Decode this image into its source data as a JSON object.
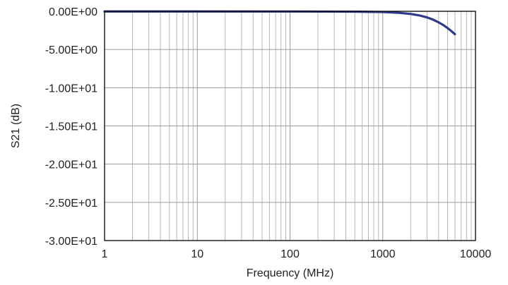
{
  "chart_data": {
    "type": "line",
    "xlabel": "Frequency (MHz)",
    "ylabel": "S21 (dB)",
    "x_scale": "log",
    "xlim": [
      1,
      10000
    ],
    "ylim": [
      -30,
      0
    ],
    "x_ticks": [
      1,
      10,
      100,
      1000,
      10000
    ],
    "x_tick_labels": [
      "1",
      "10",
      "100",
      "1000",
      "10000"
    ],
    "y_ticks": [
      0,
      -5,
      -10,
      -15,
      -20,
      -25,
      -30
    ],
    "y_tick_labels": [
      "0.00E+00",
      "-5.00E+00",
      "-1.00E+01",
      "-1.50E+01",
      "-2.00E+01",
      "-2.50E+01",
      "-3.00E+01"
    ],
    "grid": true,
    "legend": "none",
    "series": [
      {
        "color": "#2e3a8c",
        "x": [
          1,
          10,
          100,
          500,
          1000,
          1500,
          2000,
          2500,
          3000,
          3500,
          4000,
          4500,
          5000,
          5500,
          6000
        ],
        "values": [
          -0.02,
          -0.02,
          -0.03,
          -0.05,
          -0.1,
          -0.2,
          -0.35,
          -0.55,
          -0.8,
          -1.1,
          -1.45,
          -1.8,
          -2.2,
          -2.6,
          -3.0
        ]
      }
    ]
  }
}
